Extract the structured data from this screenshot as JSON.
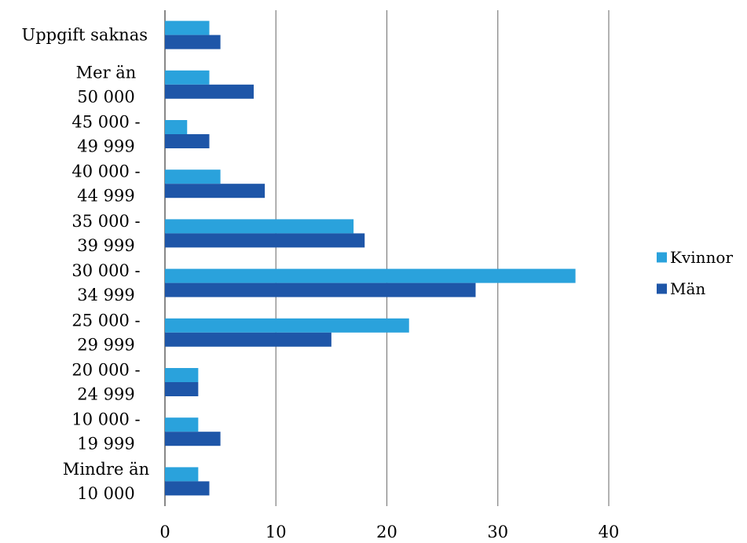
{
  "chart_data": {
    "type": "bar",
    "orientation": "horizontal",
    "categories": [
      [
        "Uppgift saknas"
      ],
      [
        "Mer än",
        "50 000"
      ],
      [
        "45 000 -",
        "49 999"
      ],
      [
        "40 000 -",
        "44 999"
      ],
      [
        "35 000 -",
        "39 999"
      ],
      [
        "30 000 -",
        "34 999"
      ],
      [
        "25 000 -",
        "29 999"
      ],
      [
        "20 000 -",
        "24 999"
      ],
      [
        "10 000 -",
        "19 999"
      ],
      [
        "Mindre än",
        "10 000"
      ]
    ],
    "series": [
      {
        "name": "Kvinnor",
        "color": "#2aa2dc",
        "values": [
          4,
          4,
          2,
          5,
          17,
          37,
          22,
          3,
          3,
          3
        ]
      },
      {
        "name": "Män",
        "color": "#1e56a8",
        "values": [
          5,
          8,
          4,
          9,
          18,
          28,
          15,
          3,
          5,
          4
        ]
      }
    ],
    "xlim": [
      0,
      40
    ],
    "xticks": [
      0,
      10,
      20,
      30,
      40
    ],
    "grid": "vertical",
    "gridline_color": "#7f7f7f",
    "legend_position": "right"
  }
}
